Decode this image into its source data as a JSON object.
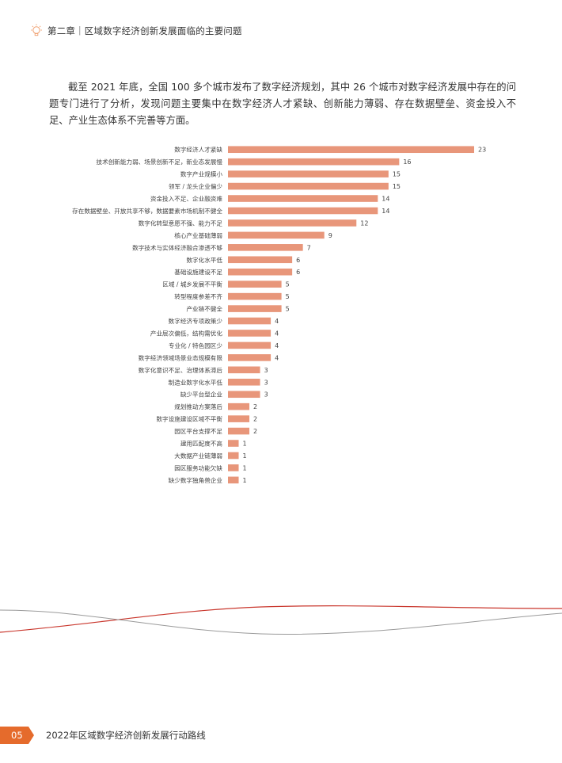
{
  "header": {
    "chapter_title": "第二章｜区域数字经济创新发展面临的主要问题",
    "icon": "lightbulb-icon"
  },
  "intro": {
    "paragraph": "截至 2021 年底，全国 100 多个城市发布了数字经济规划，其中 26 个城市对数字经济发展中存在的问题专门进行了分析，发现问题主要集中在数字经济人才紧缺、创新能力薄弱、存在数据壁垒、资金投入不足、产业生态体系不完善等方面。"
  },
  "chart_data": {
    "type": "bar",
    "orientation": "horizontal",
    "bar_color": "#e8967a",
    "grid": false,
    "categories": [
      "数字经济人才紧缺",
      "技术创新能力弱、场景创新不足，新业态发展慢",
      "数字产业规模小",
      "领军 / 龙头企业偏少",
      "资金投入不足、企业融资难",
      "存在数据壁垒、开放共享不够，数据要素市场机制不健全",
      "数字化转型意愿不强、能力不足",
      "核心产业基础薄弱",
      "数字技术与实体经济融合渗透不够",
      "数字化水平低",
      "基础设施建设不足",
      "区域 / 城乡发展不平衡",
      "转型程度参差不齐",
      "产业链不健全",
      "数字经济专项政策少",
      "产业层次偏低，结构需优化",
      "专业化 / 特色园区少",
      "数字经济领域场景业态规模有限",
      "数字化意识不足、治理体系滞后",
      "制造业数字化水平低",
      "缺少平台型企业",
      "规划推动方案落后",
      "数字设施建设区域不平衡",
      "园区平台支撑不足",
      "建用匹配度不高",
      "大数据产业链薄弱",
      "园区服务功能欠缺",
      "缺少数字独角兽企业"
    ],
    "values": [
      23,
      16,
      15,
      15,
      14,
      14,
      12,
      9,
      7,
      6,
      6,
      5,
      5,
      5,
      4,
      4,
      4,
      4,
      3,
      3,
      3,
      2,
      2,
      2,
      1,
      1,
      1,
      1
    ],
    "xlim": [
      0,
      23
    ]
  },
  "footer": {
    "page_number": "05",
    "doc_title": "2022年区域数字经济创新发展行动路线",
    "accent_color": "#e56b2c"
  }
}
